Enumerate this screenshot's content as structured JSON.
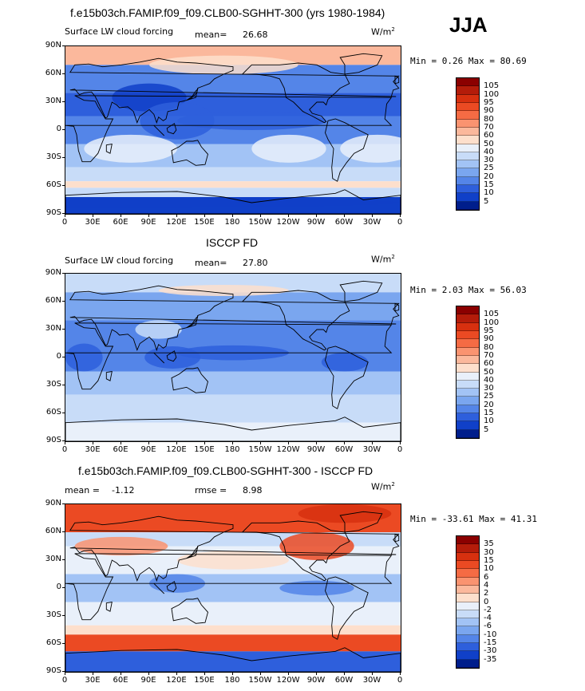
{
  "header": {
    "season": "JJA"
  },
  "units_label": "W/m",
  "units_sup": "2",
  "axis": {
    "lat_labels": [
      "90N",
      "60N",
      "30N",
      "0",
      "30S",
      "60S",
      "90S"
    ],
    "lon_labels": [
      "0",
      "30E",
      "60E",
      "90E",
      "120E",
      "150E",
      "180",
      "150W",
      "120W",
      "90W",
      "60W",
      "30W",
      "0"
    ]
  },
  "panels": [
    {
      "title": "f.e15b03ch.FAMIP.f09_f09.CLB00-SGHHT-300 (yrs 1980-1984)",
      "subtitle": "Surface LW cloud forcing",
      "mean_label": "mean=",
      "mean_value": "26.68",
      "minmax": "Min =   0.26 Max =  80.69",
      "colorbar": {
        "levels": [
          "105",
          "100",
          "95",
          "90",
          "80",
          "70",
          "60",
          "50",
          "40",
          "30",
          "25",
          "20",
          "15",
          "10",
          "5"
        ],
        "colors": [
          "#8b0000",
          "#b41c0a",
          "#d7300f",
          "#eb4a23",
          "#f56b44",
          "#fa9370",
          "#fbb89c",
          "#fddfcc",
          "#e9f0fa",
          "#c8dcf8",
          "#a2c3f5",
          "#7aa6ef",
          "#5485e8",
          "#2e5fdc",
          "#1040c8",
          "#001e8c"
        ]
      }
    },
    {
      "title": "ISCCP FD",
      "subtitle": "Surface LW cloud forcing",
      "mean_label": "mean=",
      "mean_value": "27.80",
      "minmax": "Min =   2.03 Max =  56.03",
      "colorbar": {
        "levels": [
          "105",
          "100",
          "95",
          "90",
          "80",
          "70",
          "60",
          "50",
          "40",
          "30",
          "25",
          "20",
          "15",
          "10",
          "5"
        ],
        "colors": [
          "#8b0000",
          "#b41c0a",
          "#d7300f",
          "#eb4a23",
          "#f56b44",
          "#fa9370",
          "#fbb89c",
          "#fddfcc",
          "#e9f0fa",
          "#c8dcf8",
          "#a2c3f5",
          "#7aa6ef",
          "#5485e8",
          "#2e5fdc",
          "#1040c8",
          "#001e8c"
        ]
      }
    },
    {
      "title": "f.e15b03ch.FAMIP.f09_f09.CLB00-SGHHT-300 - ISCCP FD",
      "mean_label": "mean =",
      "mean_value": "-1.12",
      "rmse_label": "rmse =",
      "rmse_value": "8.98",
      "minmax": "Min = -33.61 Max =  41.31",
      "colorbar": {
        "levels": [
          "35",
          "30",
          "15",
          "10",
          "6",
          "4",
          "2",
          "0",
          "-2",
          "-4",
          "-6",
          "-10",
          "-15",
          "-30",
          "-35"
        ],
        "colors": [
          "#8b0000",
          "#b41c0a",
          "#d7300f",
          "#eb4a23",
          "#f56b44",
          "#fa9370",
          "#fbb89c",
          "#fddfcc",
          "#e9f0fa",
          "#c8dcf8",
          "#a2c3f5",
          "#7aa6ef",
          "#5485e8",
          "#2e5fdc",
          "#1040c8",
          "#001e8c"
        ]
      }
    }
  ]
}
